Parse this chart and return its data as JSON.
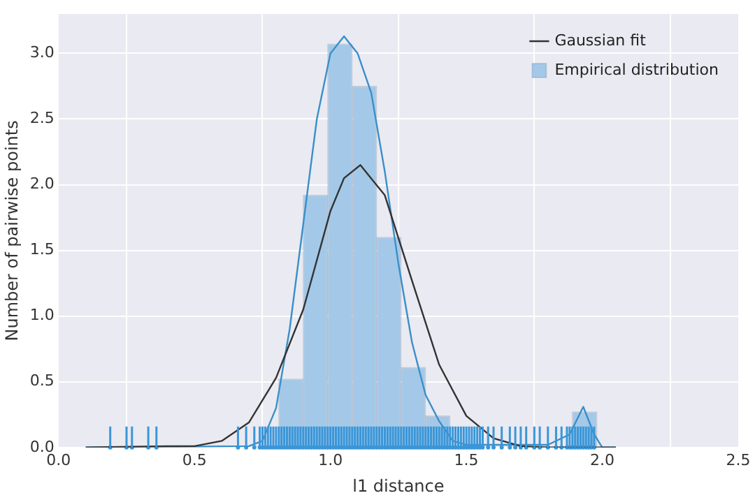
{
  "chart_data": {
    "type": "histogram",
    "xlabel": "l1 distance",
    "ylabel": "Number of pairwise points",
    "series": [
      {
        "name": "Empirical distribution",
        "color": "#a4c9e8",
        "bins": [
          0.81,
          0.9,
          0.99,
          1.08,
          1.17,
          1.26,
          1.35,
          1.44,
          1.53,
          1.62,
          1.71,
          1.8,
          1.89,
          1.98
        ],
        "values": [
          0.52,
          1.92,
          3.07,
          2.75,
          1.6,
          0.61,
          0.24,
          0,
          0,
          0,
          0,
          0,
          0.27
        ]
      },
      {
        "name": "Gaussian fit",
        "type": "line",
        "color": "#333333",
        "x": [
          0.1,
          0.4,
          0.5,
          0.6,
          0.7,
          0.8,
          0.9,
          1.0,
          1.05,
          1.11,
          1.2,
          1.3,
          1.4,
          1.5,
          1.6,
          1.7,
          1.8,
          2.05
        ],
        "values": [
          0,
          0.01,
          0.01,
          0.05,
          0.19,
          0.53,
          1.05,
          1.8,
          2.05,
          2.15,
          1.92,
          1.27,
          0.63,
          0.24,
          0.07,
          0.01,
          0,
          0
        ]
      },
      {
        "type": "line",
        "color": "#3a8fc8",
        "x": [
          0.1,
          0.7,
          0.75,
          0.8,
          0.85,
          0.9,
          0.95,
          1.0,
          1.05,
          1.1,
          1.15,
          1.2,
          1.25,
          1.3,
          1.35,
          1.4,
          1.45,
          1.5,
          1.6,
          1.7,
          1.8,
          1.88,
          1.93,
          1.97,
          2.0,
          2.05
        ],
        "values": [
          0,
          0.01,
          0.05,
          0.3,
          0.9,
          1.7,
          2.5,
          3.0,
          3.13,
          3.0,
          2.7,
          2.1,
          1.4,
          0.8,
          0.4,
          0.2,
          0.05,
          0.02,
          0.02,
          0.02,
          0.02,
          0.1,
          0.31,
          0.1,
          0,
          0
        ]
      },
      {
        "type": "scatter",
        "color": "#3a96d8",
        "x": [
          0.19,
          0.25,
          0.27,
          0.33,
          0.36,
          0.66,
          0.69,
          0.72,
          0.74,
          0.75,
          0.76,
          0.77,
          0.78,
          0.79,
          0.8,
          0.81,
          0.82,
          0.83,
          0.84,
          0.85,
          0.86,
          0.87,
          0.88,
          0.89,
          0.9,
          0.91,
          0.92,
          0.93,
          0.94,
          0.95,
          0.96,
          0.97,
          0.98,
          0.99,
          1.0,
          1.01,
          1.02,
          1.03,
          1.04,
          1.05,
          1.06,
          1.07,
          1.08,
          1.09,
          1.1,
          1.11,
          1.12,
          1.13,
          1.14,
          1.15,
          1.16,
          1.17,
          1.18,
          1.19,
          1.2,
          1.21,
          1.22,
          1.23,
          1.24,
          1.25,
          1.26,
          1.27,
          1.28,
          1.29,
          1.3,
          1.31,
          1.32,
          1.33,
          1.34,
          1.35,
          1.36,
          1.37,
          1.38,
          1.39,
          1.4,
          1.41,
          1.42,
          1.43,
          1.44,
          1.45,
          1.46,
          1.47,
          1.48,
          1.49,
          1.5,
          1.51,
          1.52,
          1.53,
          1.54,
          1.55,
          1.56,
          1.58,
          1.6,
          1.63,
          1.66,
          1.68,
          1.7,
          1.72,
          1.75,
          1.77,
          1.8,
          1.83,
          1.85,
          1.87,
          1.88,
          1.89,
          1.9,
          1.91,
          1.92,
          1.93,
          1.94,
          1.95,
          1.96,
          1.97
        ],
        "values": [
          0,
          0,
          0,
          0,
          0,
          0,
          0,
          0,
          0,
          0,
          0,
          0,
          0,
          0,
          0,
          0,
          0,
          0,
          0,
          0,
          0,
          0,
          0,
          0,
          0,
          0,
          0,
          0,
          0,
          0,
          0,
          0,
          0,
          0,
          0,
          0,
          0,
          0,
          0,
          0,
          0,
          0,
          0,
          0,
          0,
          0,
          0,
          0,
          0,
          0,
          0,
          0,
          0,
          0,
          0,
          0,
          0,
          0,
          0,
          0,
          0,
          0,
          0,
          0,
          0,
          0,
          0,
          0,
          0,
          0,
          0,
          0,
          0,
          0,
          0,
          0,
          0,
          0,
          0,
          0,
          0,
          0,
          0,
          0,
          0,
          0,
          0,
          0,
          0,
          0,
          0,
          0,
          0,
          0,
          0,
          0,
          0,
          0,
          0,
          0,
          0,
          0,
          0,
          0,
          0,
          0,
          0,
          0,
          0,
          0,
          0,
          0,
          0,
          0
        ]
      }
    ],
    "xlim": [
      0,
      2.5
    ],
    "xticks": [
      {
        "value": 0,
        "label": "0.0"
      },
      {
        "value": 0.5,
        "label": "0.5"
      },
      {
        "value": 1,
        "label": "1.0"
      },
      {
        "value": 1.5,
        "label": "1.5"
      },
      {
        "value": 2,
        "label": "2.0"
      },
      {
        "value": 2.5,
        "label": "2.5"
      }
    ],
    "ylim": [
      0,
      3.3
    ],
    "yticks": [
      {
        "value": 0,
        "label": "0.0"
      },
      {
        "value": 0.5,
        "label": "0.5"
      },
      {
        "value": 1,
        "label": "1.0"
      },
      {
        "value": 1.5,
        "label": "1.5"
      },
      {
        "value": 2,
        "label": "2.0"
      },
      {
        "value": 2.5,
        "label": "2.5"
      },
      {
        "value": 3,
        "label": "3.0"
      }
    ],
    "grid": true,
    "legend": "top right"
  }
}
